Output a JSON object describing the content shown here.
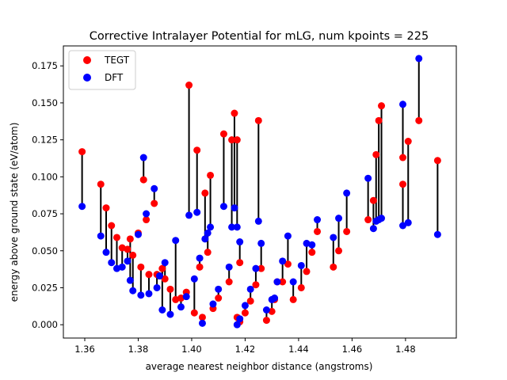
{
  "chart_data": {
    "type": "scatter",
    "title": "Corrective Intralayer Potential for mLG, num kpoints = 225",
    "xlabel": "average nearest neighbor distance (angstroms)",
    "ylabel": "energy above ground state (eV/atom)",
    "xlim": [
      1.352,
      1.499
    ],
    "ylim": [
      -0.009,
      0.1885
    ],
    "xticks": [
      1.36,
      1.38,
      1.4,
      1.42,
      1.44,
      1.46,
      1.48
    ],
    "xtick_labels": [
      "1.36",
      "1.38",
      "1.40",
      "1.42",
      "1.44",
      "1.46",
      "1.48"
    ],
    "yticks": [
      0.0,
      0.025,
      0.05,
      0.075,
      0.1,
      0.125,
      0.15,
      0.175
    ],
    "ytick_labels": [
      "0.000",
      "0.025",
      "0.050",
      "0.075",
      "0.100",
      "0.125",
      "0.150",
      "0.175"
    ],
    "legend": {
      "placement": "upper-left",
      "entries": [
        "TEGT",
        "DFT"
      ]
    },
    "grid": false,
    "series": [
      {
        "name": "TEGT",
        "color": "#ff0000",
        "x": [
          1.359,
          1.366,
          1.368,
          1.37,
          1.372,
          1.374,
          1.376,
          1.377,
          1.378,
          1.38,
          1.381,
          1.382,
          1.383,
          1.384,
          1.386,
          1.387,
          1.388,
          1.389,
          1.39,
          1.392,
          1.394,
          1.396,
          1.398,
          1.399,
          1.401,
          1.402,
          1.403,
          1.404,
          1.405,
          1.406,
          1.407,
          1.408,
          1.41,
          1.412,
          1.414,
          1.415,
          1.416,
          1.417,
          1.417,
          1.418,
          1.418,
          1.42,
          1.422,
          1.424,
          1.425,
          1.426,
          1.428,
          1.43,
          1.431,
          1.432,
          1.434,
          1.436,
          1.438,
          1.441,
          1.443,
          1.445,
          1.447,
          1.453,
          1.455,
          1.458,
          1.466,
          1.468,
          1.469,
          1.47,
          1.471,
          1.479,
          1.479,
          1.481,
          1.485,
          1.492
        ],
        "y": [
          0.117,
          0.095,
          0.079,
          0.067,
          0.059,
          0.052,
          0.051,
          0.058,
          0.047,
          0.062,
          0.039,
          0.098,
          0.071,
          0.034,
          0.082,
          0.034,
          0.033,
          0.038,
          0.031,
          0.024,
          0.017,
          0.018,
          0.022,
          0.162,
          0.008,
          0.118,
          0.039,
          0.005,
          0.089,
          0.049,
          0.101,
          0.011,
          0.018,
          0.129,
          0.029,
          0.125,
          0.143,
          0.125,
          0.005,
          0.042,
          0.002,
          0.008,
          0.016,
          0.027,
          0.138,
          0.038,
          0.003,
          0.009,
          0.017,
          0.029,
          0.029,
          0.041,
          0.017,
          0.025,
          0.036,
          0.049,
          0.063,
          0.039,
          0.05,
          0.063,
          0.071,
          0.084,
          0.115,
          0.138,
          0.148,
          0.113,
          0.095,
          0.124,
          0.138,
          0.111
        ]
      },
      {
        "name": "DFT",
        "color": "#0000ff",
        "x": [
          1.359,
          1.366,
          1.368,
          1.37,
          1.372,
          1.374,
          1.376,
          1.377,
          1.378,
          1.38,
          1.381,
          1.382,
          1.383,
          1.384,
          1.386,
          1.387,
          1.388,
          1.389,
          1.39,
          1.392,
          1.394,
          1.396,
          1.398,
          1.399,
          1.401,
          1.402,
          1.403,
          1.404,
          1.405,
          1.406,
          1.407,
          1.408,
          1.41,
          1.412,
          1.414,
          1.415,
          1.416,
          1.417,
          1.417,
          1.418,
          1.418,
          1.42,
          1.422,
          1.424,
          1.425,
          1.426,
          1.428,
          1.43,
          1.431,
          1.432,
          1.434,
          1.436,
          1.438,
          1.441,
          1.443,
          1.445,
          1.447,
          1.453,
          1.455,
          1.458,
          1.466,
          1.468,
          1.469,
          1.47,
          1.471,
          1.479,
          1.479,
          1.481,
          1.485,
          1.492
        ],
        "y": [
          0.08,
          0.06,
          0.049,
          0.042,
          0.038,
          0.039,
          0.043,
          0.03,
          0.023,
          0.061,
          0.02,
          0.113,
          0.075,
          0.021,
          0.092,
          0.025,
          0.033,
          0.01,
          0.042,
          0.007,
          0.057,
          0.012,
          0.019,
          0.074,
          0.031,
          0.076,
          0.045,
          0.001,
          0.058,
          0.062,
          0.066,
          0.014,
          0.024,
          0.08,
          0.039,
          0.066,
          0.079,
          0.066,
          0.0,
          0.056,
          0.004,
          0.013,
          0.024,
          0.038,
          0.07,
          0.055,
          0.01,
          0.017,
          0.018,
          0.029,
          0.043,
          0.06,
          0.029,
          0.04,
          0.055,
          0.054,
          0.071,
          0.059,
          0.072,
          0.089,
          0.099,
          0.065,
          0.07,
          0.071,
          0.072,
          0.149,
          0.067,
          0.069,
          0.18,
          0.061
        ]
      }
    ]
  }
}
